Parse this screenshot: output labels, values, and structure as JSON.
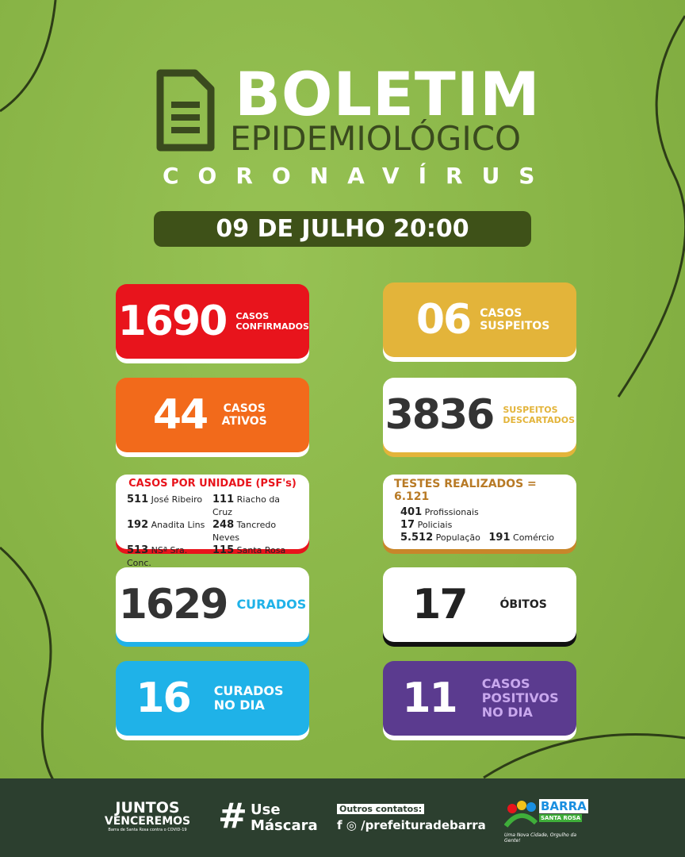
{
  "header": {
    "title": "BOLETIM",
    "subtitle": "EPIDEMIOLÓGICO",
    "topic": "CORONAVÍRUS",
    "date": "09 DE JULHO 20:00"
  },
  "cards": {
    "confirmados": {
      "value": "1690",
      "label": "CASOS CONFIRMADOS",
      "color": "#e8141c"
    },
    "suspeitos": {
      "value": "06",
      "label": "CASOS SUSPEITOS",
      "color": "#e3b43a"
    },
    "ativos": {
      "value": "44",
      "label": "CASOS ATIVOS",
      "color": "#f26a1b"
    },
    "descartados": {
      "value": "3836",
      "label": "SUSPEITOS DESCARTADOS",
      "color": "#e3b43a"
    },
    "curados": {
      "value": "1629",
      "label": "CURADOS",
      "color": "#1fb2e8"
    },
    "obitos": {
      "value": "17",
      "label": "ÓBITOS",
      "color": "#111111"
    },
    "curados_dia": {
      "value": "16",
      "label": "CURADOS NO DIA",
      "color": "#1fb2e8"
    },
    "positivos_dia": {
      "value": "11",
      "label": "CASOS POSITIVOS NO DIA",
      "color": "#5b3b8f"
    }
  },
  "unidades": {
    "title": "CASOS POR UNIDADE (PSF's)",
    "items": [
      {
        "n": "511",
        "name": "José Ribeiro"
      },
      {
        "n": "111",
        "name": "Riacho da Cruz"
      },
      {
        "n": "192",
        "name": "Anadita Lins"
      },
      {
        "n": "248",
        "name": "Tancredo Neves"
      },
      {
        "n": "513",
        "name": "NSª Sra. Conc."
      },
      {
        "n": "115",
        "name": "Santa Rosa"
      }
    ]
  },
  "testes": {
    "title": "TESTES REALIZADOS = 6.121",
    "items": [
      {
        "n": "401",
        "name": "Profissionais"
      },
      {
        "n": "17",
        "name": "Policiais"
      },
      {
        "n": "5.512",
        "name": "População"
      },
      {
        "n": "191",
        "name": "Comércio"
      }
    ]
  },
  "footer": {
    "juntos": "JUNTOS",
    "venceremos": "VENCEREMOS",
    "juntos_sub": "Barra de Santa Rosa contra o COVID-19",
    "hash": "#",
    "use": "Use",
    "mascara": "Máscara",
    "outros": "Outros contatos:",
    "handle": "/prefeituradebarra",
    "logo_barra": "BARRA",
    "logo_santa": "SANTA ROSA",
    "logo_slogan": "Uma Nova Cidade, Orgulho da Gente!"
  }
}
